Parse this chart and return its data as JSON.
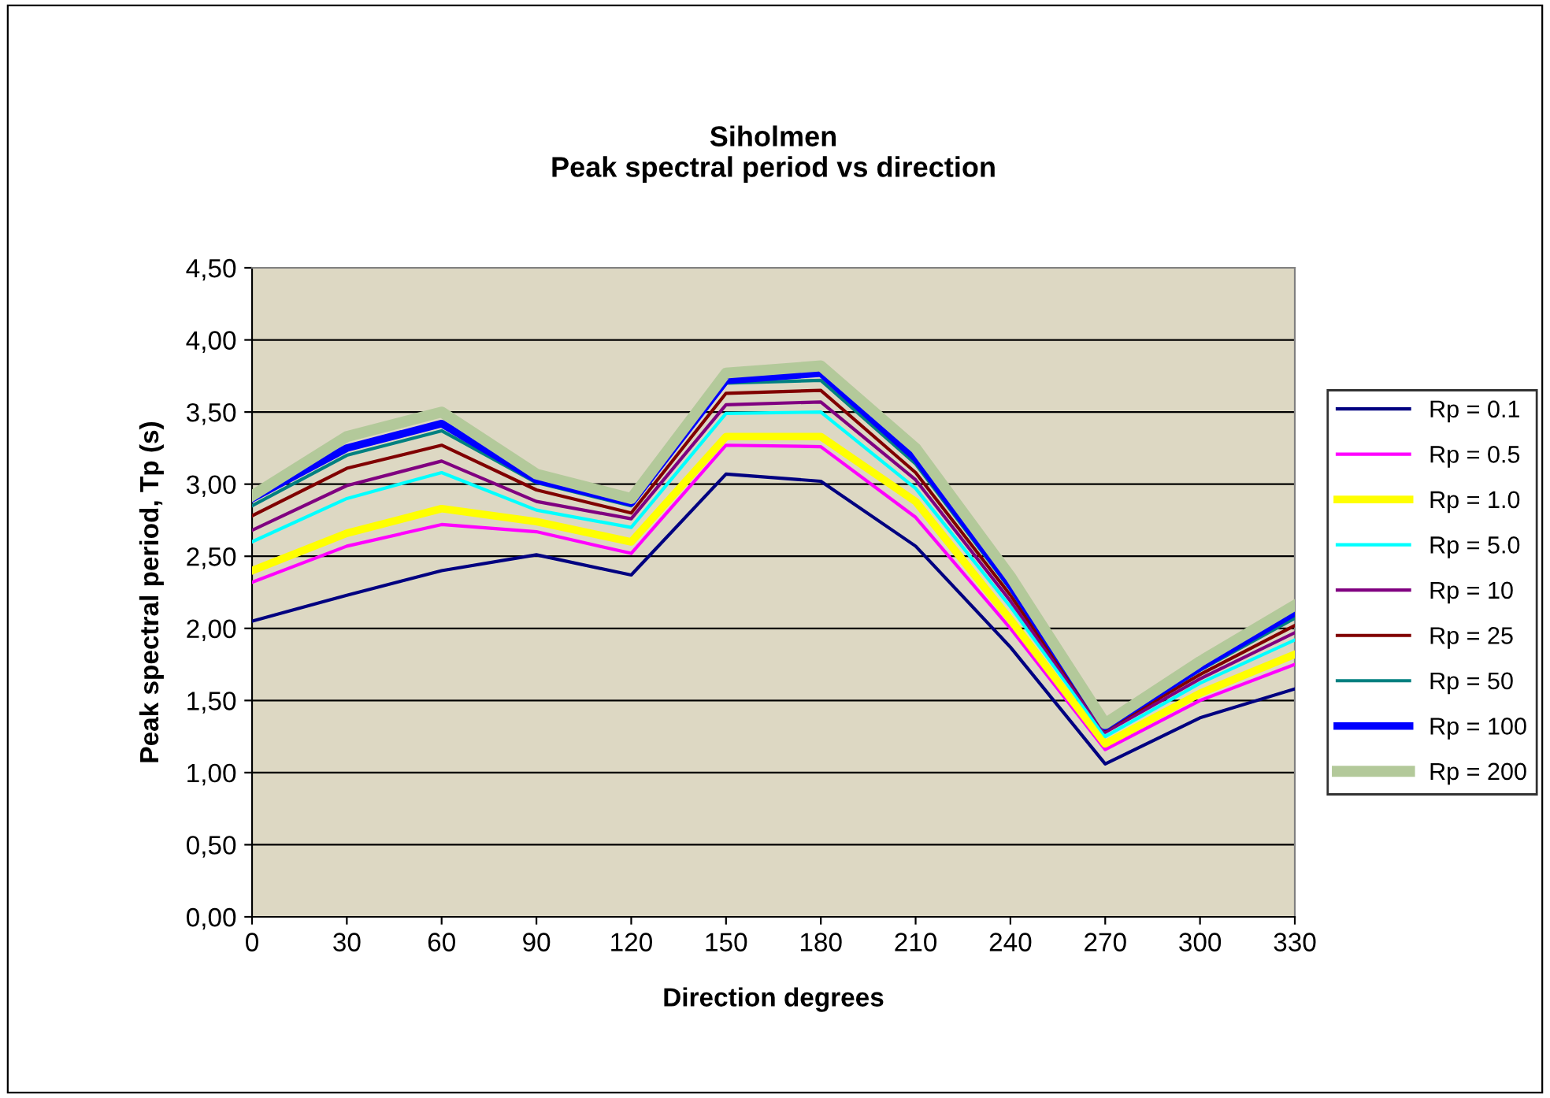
{
  "chart_data": {
    "type": "line",
    "title": "Siholmen\nPeak spectral period vs direction",
    "xlabel": "Direction degrees",
    "ylabel": "Peak spectral period, Tp (s)",
    "categories": [
      "0",
      "30",
      "60",
      "90",
      "120",
      "150",
      "180",
      "210",
      "240",
      "270",
      "300",
      "330"
    ],
    "ylim": [
      0,
      4.5
    ],
    "yticks": [
      {
        "value": 0,
        "label": "0,00"
      },
      {
        "value": 0.5,
        "label": "0,50"
      },
      {
        "value": 1.0,
        "label": "1,00"
      },
      {
        "value": 1.5,
        "label": "1,50"
      },
      {
        "value": 2.0,
        "label": "2,00"
      },
      {
        "value": 2.5,
        "label": "2,50"
      },
      {
        "value": 3.0,
        "label": "3,00"
      },
      {
        "value": 3.5,
        "label": "3,50"
      },
      {
        "value": 4.0,
        "label": "4,00"
      },
      {
        "value": 4.5,
        "label": "4,50"
      }
    ],
    "grid": "y",
    "legend": "right",
    "marker": "none",
    "line_style": "solid",
    "series": [
      {
        "name": "Rp = 0.1",
        "color": "#000080",
        "values": [
          2.05,
          2.23,
          2.4,
          2.51,
          2.37,
          3.07,
          3.02,
          2.57,
          1.87,
          1.06,
          1.38,
          1.58
        ]
      },
      {
        "name": "Rp = 0.5",
        "color": "#ff00ff",
        "values": [
          2.32,
          2.57,
          2.72,
          2.67,
          2.52,
          3.27,
          3.26,
          2.77,
          2.0,
          1.16,
          1.5,
          1.75
        ]
      },
      {
        "name": "Rp = 1.0",
        "color": "#ffff00",
        "values": [
          2.4,
          2.66,
          2.83,
          2.74,
          2.6,
          3.33,
          3.33,
          2.88,
          2.06,
          1.2,
          1.55,
          1.82
        ]
      },
      {
        "name": "Rp = 5.0",
        "color": "#00ffff",
        "values": [
          2.6,
          2.9,
          3.08,
          2.82,
          2.7,
          3.49,
          3.5,
          2.97,
          2.15,
          1.25,
          1.62,
          1.92
        ]
      },
      {
        "name": "Rp = 10",
        "color": "#800080",
        "values": [
          2.68,
          2.99,
          3.16,
          2.88,
          2.76,
          3.55,
          3.57,
          3.03,
          2.19,
          1.28,
          1.65,
          1.97
        ]
      },
      {
        "name": "Rp = 25",
        "color": "#800000",
        "values": [
          2.78,
          3.11,
          3.27,
          2.96,
          2.8,
          3.63,
          3.65,
          3.08,
          2.23,
          1.3,
          1.68,
          2.02
        ]
      },
      {
        "name": "Rp = 50",
        "color": "#008080",
        "values": [
          2.85,
          3.2,
          3.37,
          3.01,
          2.85,
          3.7,
          3.72,
          3.14,
          2.27,
          1.31,
          1.71,
          2.07
        ]
      },
      {
        "name": "Rp = 100",
        "color": "#0000ff",
        "values": [
          2.9,
          3.25,
          3.42,
          3.03,
          2.87,
          3.72,
          3.77,
          3.18,
          2.3,
          1.32,
          1.73,
          2.11
        ]
      },
      {
        "name": "Rp = 200",
        "color": "#b3c99a",
        "values": [
          2.92,
          3.33,
          3.5,
          3.07,
          2.9,
          3.77,
          3.82,
          3.25,
          2.36,
          1.34,
          1.77,
          2.16
        ]
      }
    ]
  }
}
